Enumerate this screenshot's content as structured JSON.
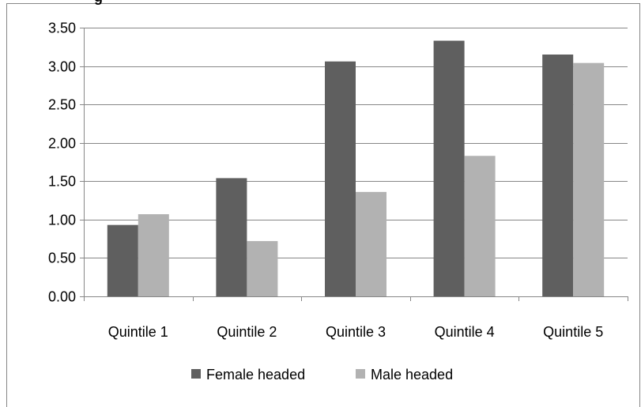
{
  "chart_data": {
    "type": "bar",
    "title": "",
    "title_fragment": "g",
    "xlabel": "",
    "ylabel": "",
    "categories": [
      "Quintile 1",
      "Quintile 2",
      "Quintile 3",
      "Quintile 4",
      "Quintile 5"
    ],
    "series": [
      {
        "name": "Female headed",
        "values": [
          0.93,
          1.54,
          3.06,
          3.33,
          3.15
        ],
        "color": "#5f5f5f"
      },
      {
        "name": "Male headed",
        "values": [
          1.07,
          0.72,
          1.36,
          1.83,
          3.04
        ],
        "color": "#b2b2b2"
      }
    ],
    "ylim": [
      0,
      3.5
    ],
    "ytick_step": 0.5,
    "ytick_labels": [
      "0.00",
      "0.50",
      "1.00",
      "1.50",
      "2.00",
      "2.50",
      "3.00",
      "3.50"
    ],
    "grid": true,
    "gridline_color": "#878787",
    "legend_position": "bottom"
  }
}
